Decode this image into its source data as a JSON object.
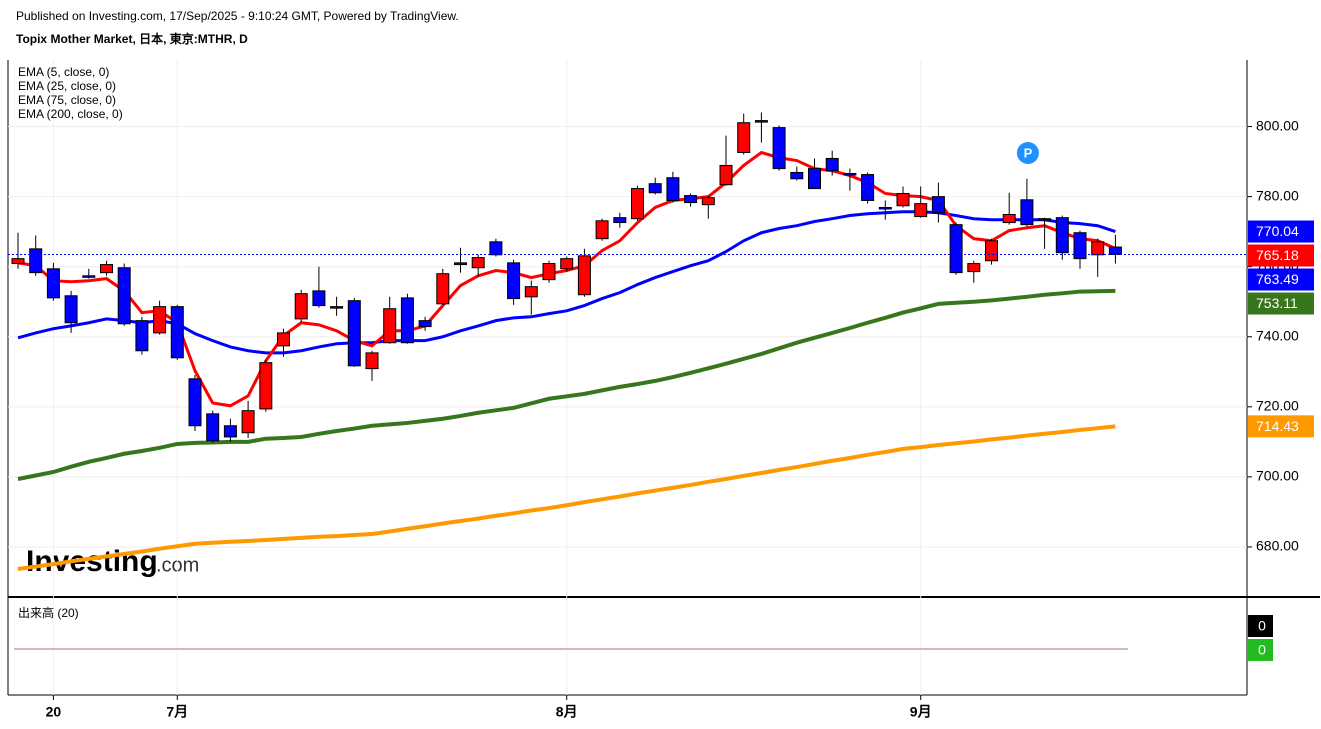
{
  "header": {
    "published": "Published on Investing.com, 17/Sep/2025 - 9:10:24 GMT, Powered by TradingView.",
    "symbol": "Topix Mother Market, 日本, 東京:MTHR, D"
  },
  "logo": {
    "main": "Investing",
    "suffix": ".com"
  },
  "chart_data": {
    "type": "candlestick",
    "categories": [
      null,
      null,
      "20",
      null,
      null,
      null,
      null,
      null,
      null,
      "7月",
      null,
      null,
      null,
      null,
      null,
      null,
      null,
      null,
      null,
      null,
      null,
      null,
      null,
      null,
      null,
      null,
      null,
      null,
      null,
      null,
      null,
      "8月",
      null,
      null,
      null,
      null,
      null,
      null,
      null,
      null,
      null,
      null,
      null,
      null,
      null,
      null,
      null,
      null,
      null,
      null,
      null,
      "9月",
      null,
      null,
      null,
      null,
      null,
      null,
      null,
      null,
      null,
      null,
      null
    ],
    "open": [
      760.9,
      765.1,
      759.4,
      751.7,
      757.4,
      758.3,
      759.7,
      744.6,
      741.1,
      748.6,
      728.0,
      718.0,
      714.6,
      712.6,
      719.4,
      737.4,
      745.1,
      753.1,
      748.6,
      750.3,
      730.9,
      738.3,
      751.1,
      744.6,
      749.4,
      761.1,
      759.7,
      767.1,
      761.1,
      751.4,
      756.3,
      759.4,
      752.0,
      768.0,
      774.0,
      773.7,
      783.7,
      785.4,
      780.3,
      777.7,
      783.4,
      792.6,
      801.7,
      799.7,
      786.9,
      788.0,
      790.9,
      786.6,
      786.3,
      776.9,
      777.4,
      774.3,
      780.0,
      772.0,
      758.6,
      761.7,
      772.6,
      779.1,
      773.7,
      774.0,
      769.7,
      763.4,
      765.6
    ],
    "high": [
      769.7,
      768.9,
      761.1,
      753.1,
      759.4,
      761.7,
      760.9,
      745.7,
      750.3,
      749.1,
      729.1,
      718.9,
      716.6,
      721.7,
      733.4,
      742.3,
      753.4,
      760.0,
      751.4,
      751.1,
      736.0,
      751.4,
      752.3,
      745.7,
      759.4,
      765.4,
      763.4,
      768.0,
      762.0,
      756.0,
      761.7,
      762.9,
      765.1,
      773.7,
      775.4,
      783.1,
      785.4,
      787.1,
      780.9,
      780.3,
      797.4,
      803.7,
      804.0,
      800.3,
      788.6,
      790.9,
      793.1,
      788.0,
      786.9,
      778.9,
      782.9,
      782.9,
      784.0,
      772.6,
      761.7,
      768.0,
      781.1,
      785.1,
      774.0,
      774.6,
      770.3,
      768.0,
      769.1
    ],
    "low": [
      759.4,
      757.4,
      750.3,
      741.1,
      756.6,
      757.4,
      743.1,
      734.9,
      740.6,
      733.4,
      713.1,
      709.7,
      710.0,
      711.1,
      718.6,
      734.3,
      744.3,
      748.3,
      746.0,
      731.4,
      727.4,
      738.0,
      738.0,
      741.7,
      749.1,
      758.3,
      757.1,
      762.9,
      749.1,
      746.3,
      755.4,
      758.6,
      751.4,
      767.4,
      771.1,
      773.1,
      780.6,
      778.3,
      777.1,
      773.7,
      783.1,
      792.0,
      795.4,
      787.4,
      784.6,
      782.3,
      786.0,
      781.7,
      778.0,
      773.4,
      776.9,
      774.0,
      772.6,
      757.7,
      755.4,
      760.6,
      772.0,
      771.4,
      765.1,
      762.0,
      759.4,
      757.1,
      760.9
    ],
    "close": [
      762.3,
      758.3,
      751.1,
      744.0,
      757.1,
      760.6,
      743.7,
      736.0,
      748.6,
      734.0,
      714.6,
      710.3,
      711.4,
      718.9,
      732.6,
      741.1,
      752.3,
      748.9,
      748.3,
      731.7,
      735.4,
      748.0,
      738.3,
      742.9,
      758.0,
      760.6,
      762.6,
      763.4,
      750.9,
      754.3,
      760.9,
      762.3,
      763.1,
      773.1,
      772.6,
      782.3,
      781.1,
      778.9,
      778.3,
      779.7,
      788.9,
      801.1,
      801.4,
      788.0,
      785.1,
      782.3,
      787.4,
      786.3,
      778.9,
      776.6,
      780.9,
      778.0,
      775.4,
      758.3,
      760.9,
      767.4,
      774.9,
      772.0,
      773.4,
      764.0,
      762.3,
      767.1,
      763.49
    ],
    "up_color": "#ff0000",
    "down_color": "#0000ff",
    "series": [
      {
        "name": "EMA (5, close, 0)",
        "color": "#ff0000",
        "values": [
          761.1,
          760.3,
          756.0,
          755.7,
          756.0,
          756.6,
          753.1,
          746.9,
          747.4,
          744.0,
          730.3,
          721.1,
          720.3,
          723.1,
          733.1,
          740.3,
          744.0,
          743.4,
          741.7,
          738.9,
          737.4,
          741.7,
          741.7,
          743.1,
          748.9,
          754.6,
          757.4,
          758.9,
          758.3,
          756.9,
          758.0,
          758.9,
          760.3,
          764.6,
          767.4,
          772.6,
          776.9,
          778.9,
          779.4,
          780.0,
          784.0,
          788.9,
          792.6,
          791.1,
          790.3,
          788.0,
          787.4,
          786.0,
          784.0,
          780.9,
          780.3,
          780.0,
          778.9,
          771.7,
          768.0,
          767.4,
          770.3,
          771.1,
          771.7,
          769.7,
          768.0,
          767.4,
          765.18
        ]
      },
      {
        "name": "EMA (25, close, 0)",
        "color": "#0000ff",
        "values": [
          739.7,
          741.1,
          742.3,
          743.1,
          744.0,
          745.1,
          744.6,
          744.0,
          744.6,
          743.7,
          740.9,
          738.9,
          737.1,
          736.0,
          735.4,
          735.4,
          736.0,
          737.1,
          738.0,
          738.3,
          738.3,
          738.9,
          738.9,
          738.9,
          740.0,
          741.7,
          743.1,
          744.6,
          745.4,
          745.7,
          746.6,
          747.4,
          748.9,
          750.9,
          752.6,
          754.9,
          756.9,
          758.6,
          760.3,
          761.7,
          764.3,
          767.4,
          769.7,
          770.9,
          771.7,
          772.9,
          773.7,
          774.6,
          775.1,
          775.4,
          775.7,
          775.7,
          775.4,
          774.6,
          773.7,
          773.4,
          773.4,
          773.4,
          773.4,
          772.6,
          772.3,
          771.7,
          770.04
        ]
      },
      {
        "name": "EMA (75, close, 0)",
        "color": "#38761d",
        "values": [
          699.4,
          700.4,
          701.4,
          702.9,
          704.3,
          705.4,
          706.6,
          707.4,
          708.3,
          709.4,
          709.7,
          709.8,
          710.0,
          710.0,
          710.9,
          711.1,
          711.4,
          712.3,
          713.1,
          713.8,
          714.6,
          715.0,
          715.4,
          716.0,
          716.6,
          717.4,
          718.3,
          719.0,
          719.7,
          721.0,
          722.3,
          723.0,
          723.7,
          724.7,
          725.7,
          726.5,
          727.4,
          728.5,
          729.7,
          731.0,
          732.3,
          733.7,
          735.1,
          736.7,
          738.3,
          739.7,
          741.1,
          742.5,
          744.0,
          745.4,
          746.9,
          748.1,
          749.4,
          749.7,
          750.0,
          750.4,
          750.9,
          751.4,
          752.0,
          752.4,
          752.9,
          753.0,
          753.11
        ]
      },
      {
        "name": "EMA (200, close, 0)",
        "color": "#ff9900",
        "values": [
          673.7,
          674.4,
          675.1,
          675.9,
          676.6,
          677.3,
          678.0,
          678.7,
          679.5,
          680.2,
          680.9,
          681.2,
          681.5,
          681.7,
          682.0,
          682.3,
          682.6,
          682.9,
          683.1,
          683.4,
          683.7,
          684.4,
          685.2,
          685.9,
          686.7,
          687.4,
          688.1,
          688.9,
          689.6,
          690.4,
          691.1,
          691.9,
          692.8,
          693.6,
          694.4,
          695.3,
          696.1,
          696.9,
          697.7,
          698.6,
          699.4,
          700.3,
          701.1,
          702.0,
          702.8,
          703.7,
          704.6,
          705.4,
          706.3,
          707.1,
          708.0,
          708.5,
          709.1,
          709.6,
          710.1,
          710.7,
          711.2,
          711.8,
          712.3,
          712.8,
          713.4,
          713.9,
          714.43
        ]
      }
    ],
    "ylim": [
      666,
      819
    ],
    "yticks": [
      {
        "value": 680,
        "label": "680.00"
      },
      {
        "value": 700,
        "label": "700.00"
      },
      {
        "value": 720,
        "label": "720.00"
      },
      {
        "value": 740,
        "label": "740.00"
      },
      {
        "value": 760,
        "label": "760.00"
      },
      {
        "value": 780,
        "label": "780.00"
      },
      {
        "value": 800,
        "label": "800.00"
      }
    ],
    "grid": true,
    "marker": "P",
    "volume": {
      "title": "出来高 (20)",
      "values": [
        0,
        0
      ],
      "colors": [
        "#000000",
        "#22bb22"
      ]
    }
  }
}
